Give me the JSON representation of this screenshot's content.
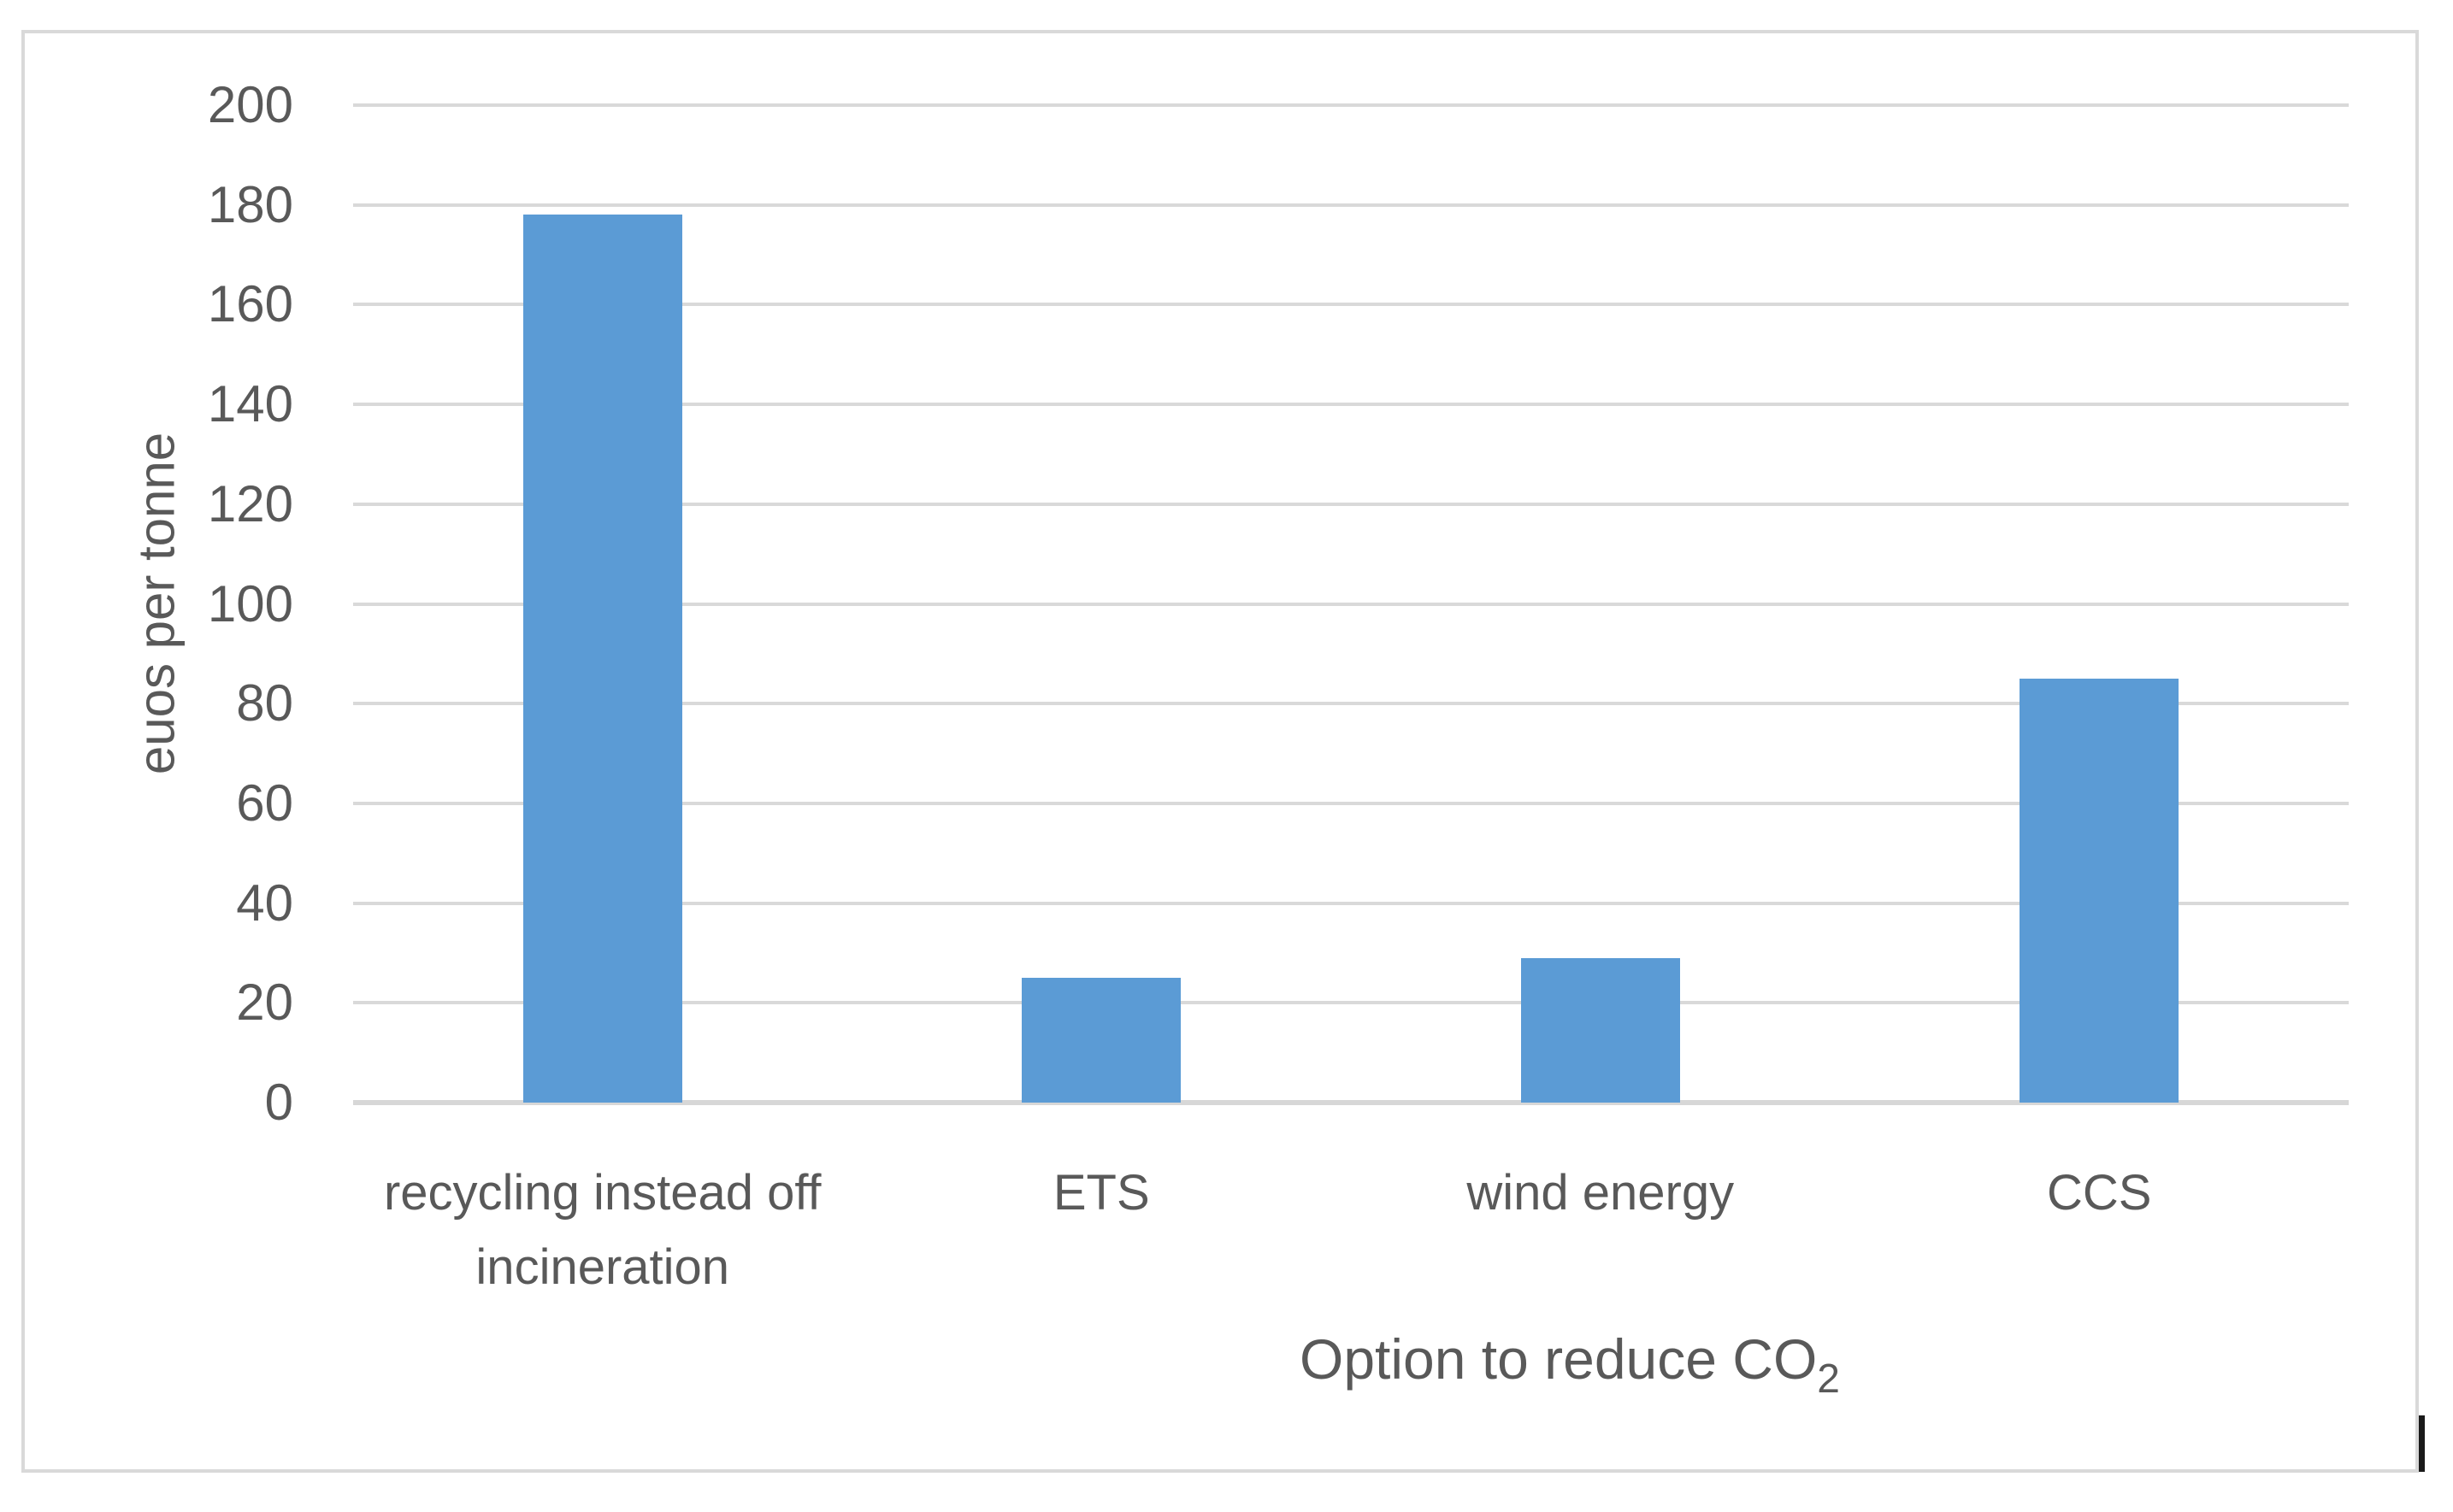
{
  "window": {
    "background": "#ffffff"
  },
  "chart_data": {
    "type": "bar",
    "categories": [
      "recycling instead off incineration",
      "ETS",
      "wind energy",
      "CCS"
    ],
    "values": [
      178,
      25,
      29,
      85
    ],
    "title": "",
    "xlabel": "Option to reduce CO2",
    "xlabel_main": "Option to reduce CO",
    "xlabel_subscript": "2",
    "ylabel": "euos per tonne",
    "ylim": [
      0,
      200
    ],
    "yticks": [
      0,
      20,
      40,
      60,
      80,
      100,
      120,
      140,
      160,
      180,
      200
    ],
    "grid": true,
    "legend": false,
    "bar_color": "#5B9BD5",
    "gridline_color": "#D9D9D9",
    "axis_line_color": "#D7D7D7",
    "text_color": "#595959",
    "frame_border_color": "#D9D9D9"
  }
}
